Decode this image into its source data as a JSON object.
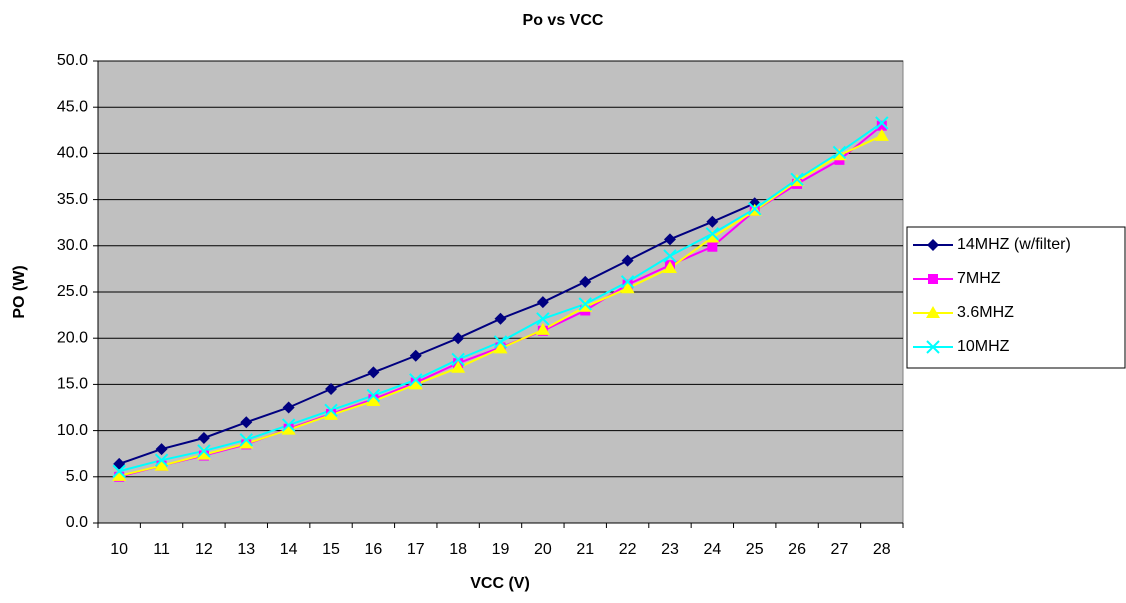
{
  "chart_data": {
    "type": "line",
    "title": "Po vs VCC",
    "x_label": "VCC (V)",
    "y_label": "PO (W)",
    "categories": [
      10,
      11,
      12,
      13,
      14,
      15,
      16,
      17,
      18,
      19,
      20,
      21,
      22,
      23,
      24,
      25,
      26,
      27,
      28
    ],
    "series": [
      {
        "name": "14MHZ (w/filter)",
        "color": "#000080",
        "marker": "diamond",
        "values": [
          6.4,
          8.0,
          9.2,
          10.9,
          12.5,
          14.5,
          16.3,
          18.1,
          20.0,
          22.1,
          23.9,
          26.1,
          28.4,
          30.7,
          32.6,
          34.6,
          null,
          null,
          null
        ]
      },
      {
        "name": "7MHZ",
        "color": "#ff00ff",
        "marker": "square",
        "values": [
          5.0,
          6.2,
          7.3,
          8.5,
          10.2,
          11.8,
          13.4,
          15.2,
          17.3,
          19.0,
          20.8,
          23.0,
          25.8,
          27.9,
          29.9,
          33.8,
          36.7,
          39.3,
          43.0
        ]
      },
      {
        "name": "3.6MHZ",
        "color": "#ffff00",
        "marker": "triangle",
        "values": [
          5.1,
          6.2,
          7.4,
          8.6,
          10.1,
          11.7,
          13.2,
          15.0,
          16.8,
          18.9,
          20.9,
          23.4,
          25.4,
          27.6,
          30.9,
          33.8,
          37.0,
          39.8,
          41.9
        ]
      },
      {
        "name": "10MHZ",
        "color": "#00ffff",
        "marker": "x",
        "values": [
          5.6,
          6.8,
          7.8,
          9.0,
          10.6,
          12.2,
          13.8,
          15.5,
          17.7,
          19.6,
          22.1,
          23.7,
          26.1,
          28.9,
          31.3,
          34.0,
          37.2,
          40.1,
          43.3
        ]
      }
    ],
    "ylim": [
      0,
      50
    ],
    "yticks": [
      {
        "value": 0,
        "label": "0.0"
      },
      {
        "value": 5,
        "label": "5.0"
      },
      {
        "value": 10,
        "label": "10.0"
      },
      {
        "value": 15,
        "label": "15.0"
      },
      {
        "value": 20,
        "label": "20.0"
      },
      {
        "value": 25,
        "label": "25.0"
      },
      {
        "value": 30,
        "label": "30.0"
      },
      {
        "value": 35,
        "label": "35.0"
      },
      {
        "value": 40,
        "label": "40.0"
      },
      {
        "value": 45,
        "label": "45.0"
      },
      {
        "value": 50,
        "label": "50.0"
      }
    ],
    "grid": true,
    "legend": "right",
    "plot_background": "#c0c0c0"
  }
}
